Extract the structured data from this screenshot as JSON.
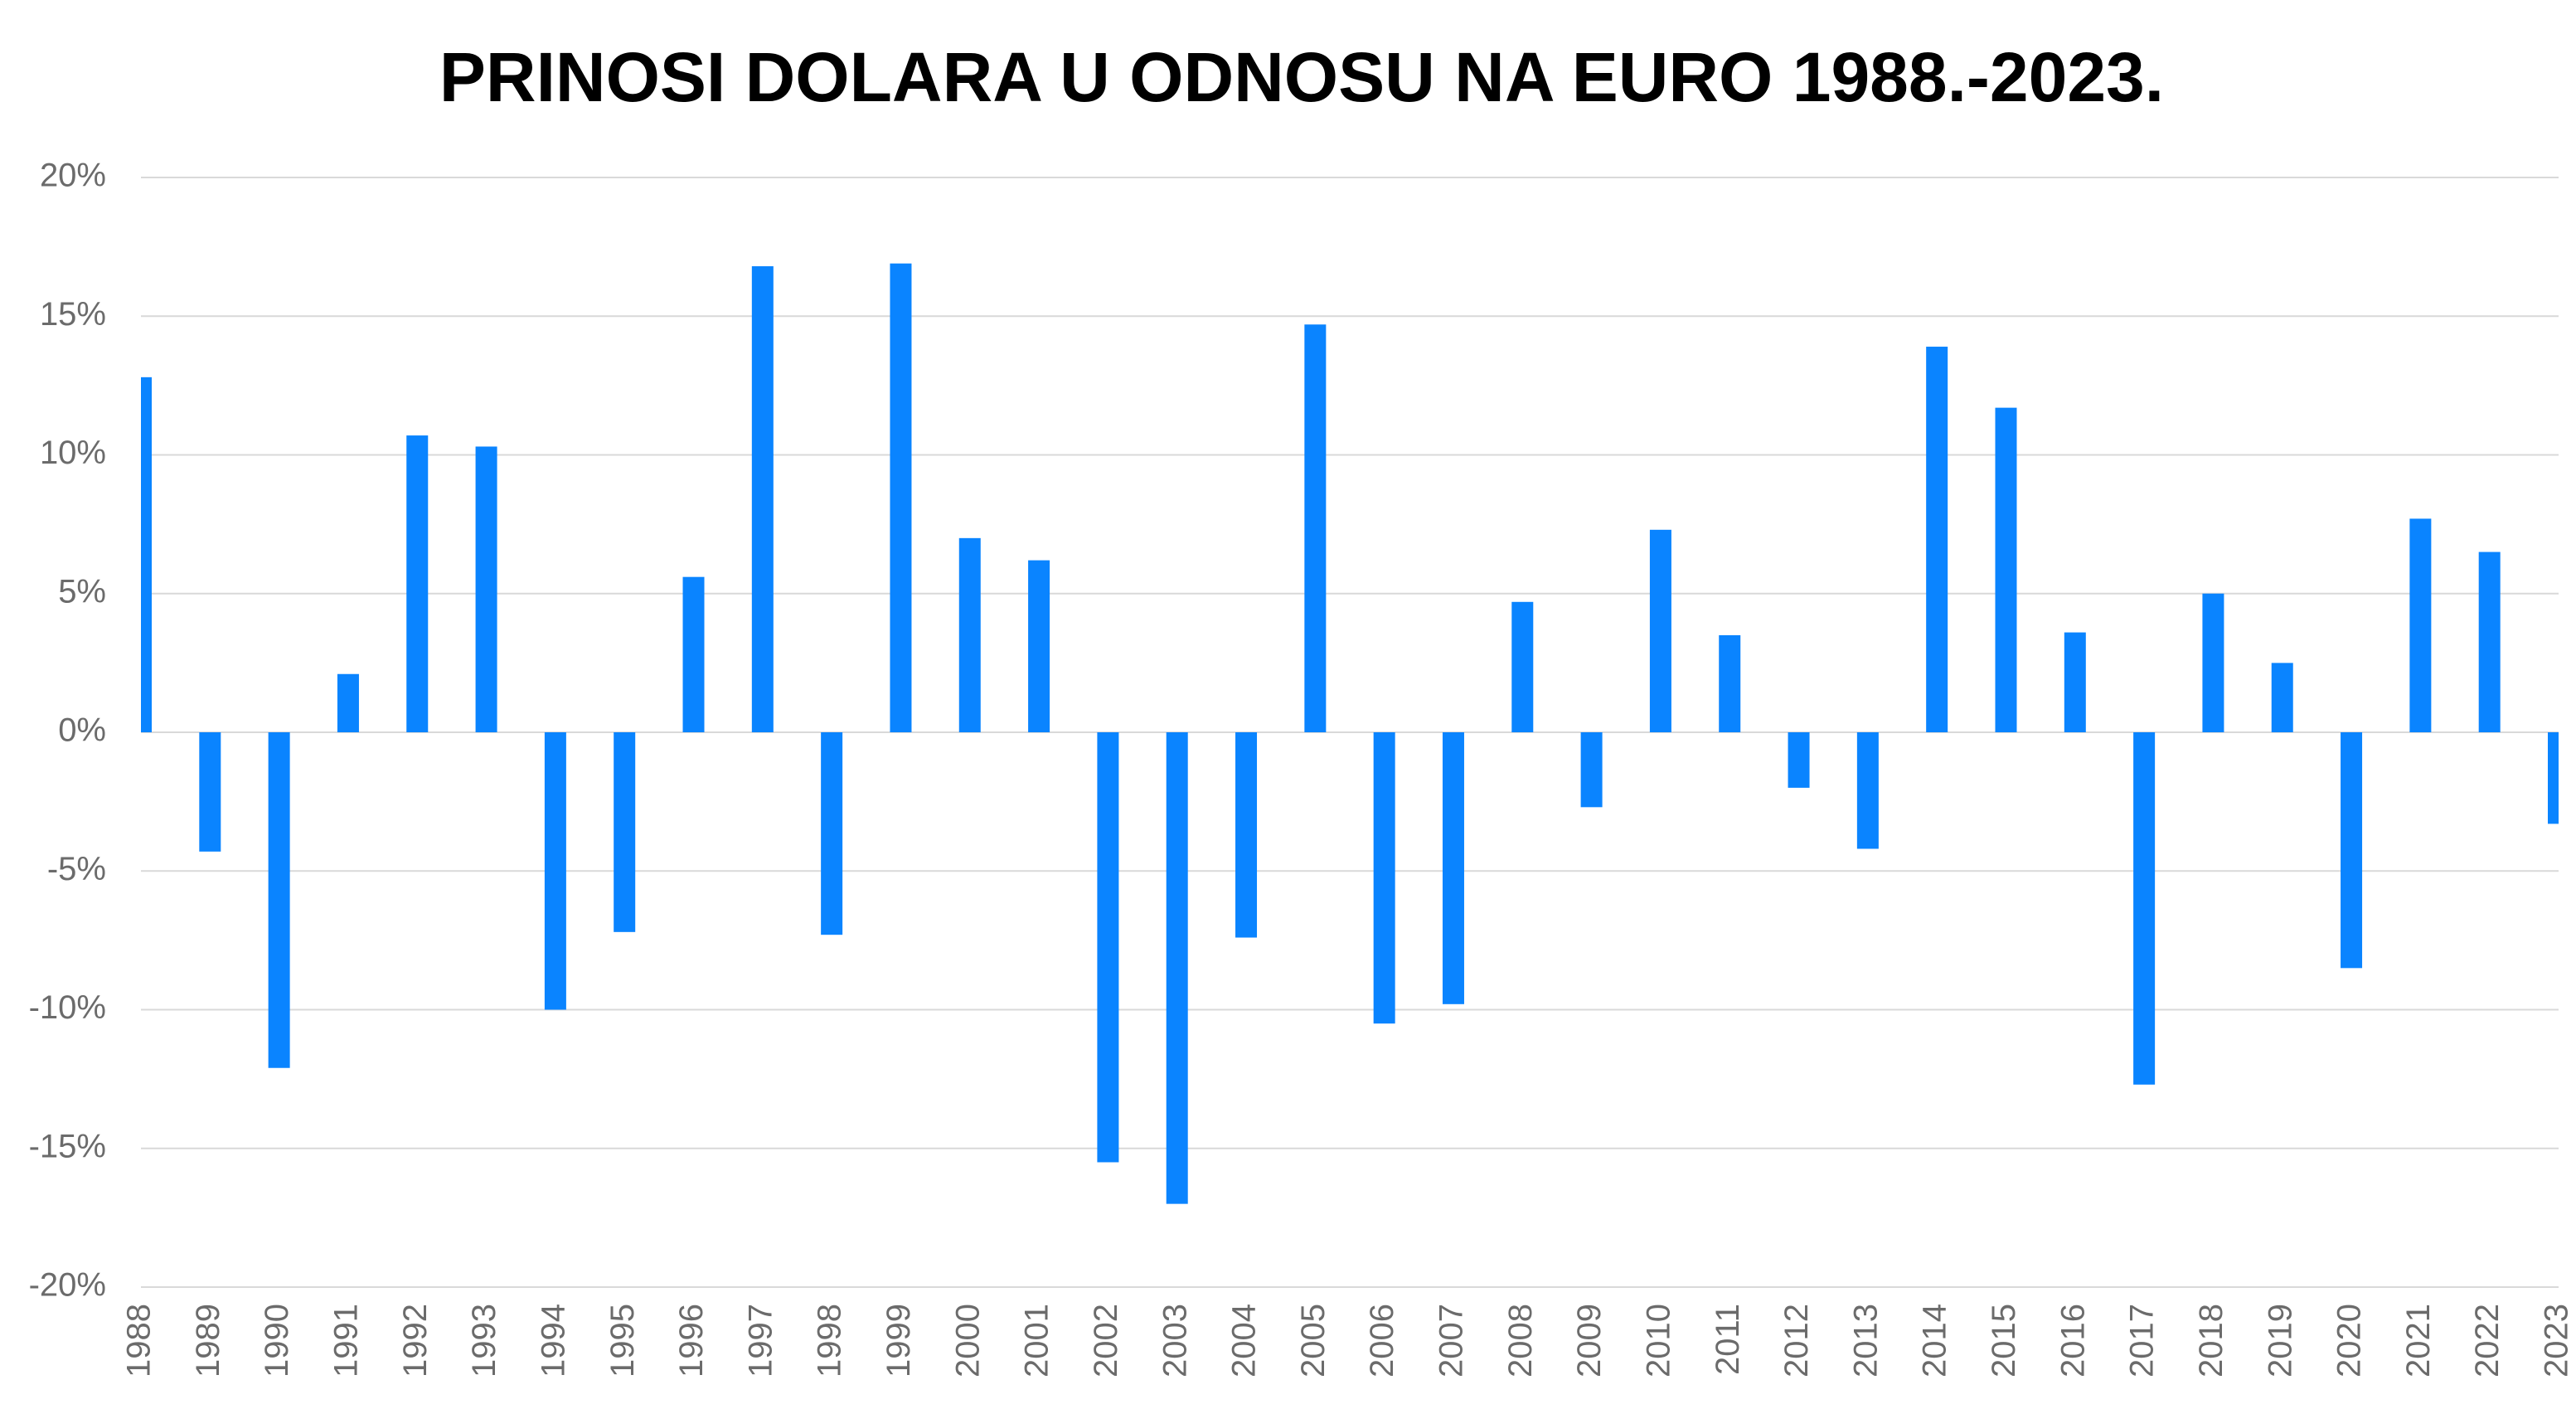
{
  "chart_data": {
    "type": "bar",
    "title": "PRINOSI DOLARA U ODNOSU NA EURO 1988.-2023.",
    "categories": [
      "1988",
      "1989",
      "1990",
      "1991",
      "1992",
      "1993",
      "1994",
      "1995",
      "1996",
      "1997",
      "1998",
      "1999",
      "2000",
      "2001",
      "2002",
      "2003",
      "2004",
      "2005",
      "2006",
      "2007",
      "2008",
      "2009",
      "2010",
      "2011",
      "2012",
      "2013",
      "2014",
      "2015",
      "2016",
      "2017",
      "2018",
      "2019",
      "2020",
      "2021",
      "2022",
      "2023"
    ],
    "values": [
      12.8,
      -4.3,
      -12.1,
      2.1,
      10.7,
      10.3,
      -10.0,
      -7.2,
      5.6,
      16.8,
      -7.3,
      16.9,
      7.0,
      6.2,
      -15.5,
      -17.0,
      -7.4,
      14.7,
      -10.5,
      -9.8,
      4.7,
      -2.7,
      7.3,
      3.5,
      -2.0,
      -4.2,
      13.9,
      11.7,
      3.6,
      -12.7,
      5.0,
      2.5,
      -8.5,
      7.7,
      6.5,
      -3.3
    ],
    "color": "#0a84ff",
    "ylim": [
      -20,
      20
    ],
    "yticks": [
      {
        "value": 20,
        "label": "20%"
      },
      {
        "value": 15,
        "label": "15%"
      },
      {
        "value": 10,
        "label": "10%"
      },
      {
        "value": 5,
        "label": "5%"
      },
      {
        "value": 0,
        "label": "0%"
      },
      {
        "value": -5,
        "label": "-5%"
      },
      {
        "value": -10,
        "label": "-10%"
      },
      {
        "value": -15,
        "label": "-15%"
      },
      {
        "value": -20,
        "label": "-20%"
      }
    ],
    "grid": true
  }
}
